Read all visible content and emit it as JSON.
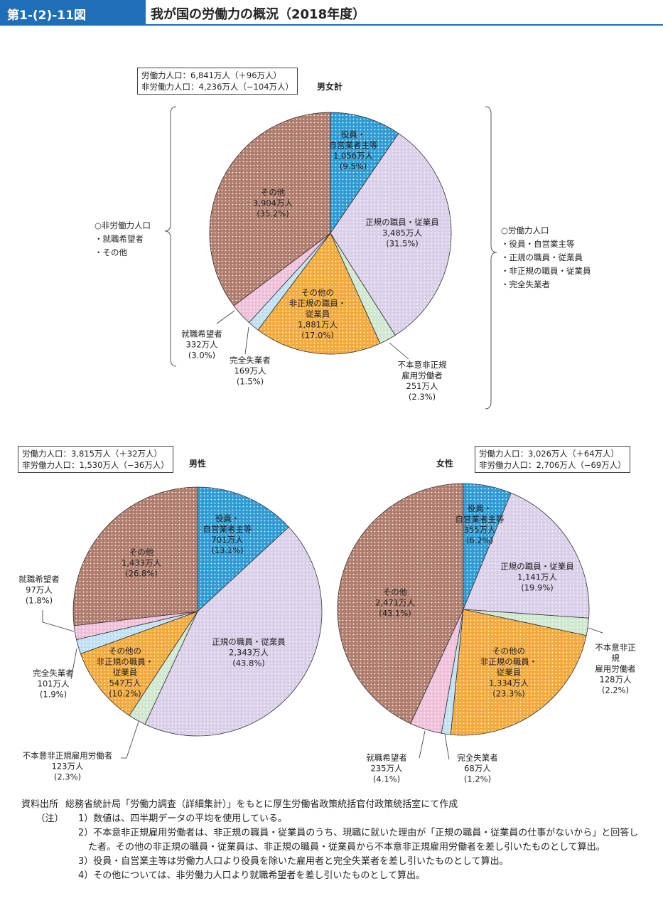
{
  "header": {
    "figure_number": "第1-(2)-11図",
    "title": "我が国の労働力の概況（2018年度）"
  },
  "chart_data": [
    {
      "type": "pie",
      "title": "男女計",
      "summary": [
        "労働力人口：6,841万人（＋96万人）",
        "非労働力人口：4,236万人（−104万人）"
      ],
      "categories": [
        "役員・\n自営業者主等",
        "正規の職員・従業員",
        "不本意非正規\n雇用労働者",
        "その他の\n非正規の職員・\n従業員",
        "完全失業者",
        "就職希望者",
        "その他"
      ],
      "values": [
        1056,
        3485,
        251,
        1881,
        169,
        332,
        3904
      ],
      "value_labels": [
        "1,056万人",
        "3,485万人",
        "251万人",
        "1,881万人",
        "169万人",
        "332万人",
        "3,904万人"
      ],
      "percents": [
        9.5,
        31.5,
        2.3,
        17.0,
        1.5,
        3.0,
        35.2
      ],
      "percent_labels": [
        "(9.5%)",
        "(31.5%)",
        "(2.3%)",
        "(17.0%)",
        "(1.5%)",
        "(3.0%)",
        "(35.2%)"
      ],
      "colors": [
        "#2f9bd4",
        "#d9cfe9",
        "#cfe7cf",
        "#f4a93b",
        "#bfe0f2",
        "#efbfd9",
        "#b07d6d"
      ]
    },
    {
      "type": "pie",
      "title": "男性",
      "summary": [
        "労働力人口：3,815万人（＋32万人）",
        "非労働力人口：1,530万人（−36万人）"
      ],
      "categories": [
        "役員・\n自営業者主等",
        "正規の職員・従業員",
        "不本意非正規雇用労働者",
        "その他の\n非正規の職員・\n従業員",
        "完全失業者",
        "就職希望者",
        "その他"
      ],
      "values": [
        701,
        2343,
        123,
        547,
        101,
        97,
        1433
      ],
      "value_labels": [
        "701万人",
        "2,343万人",
        "123万人",
        "547万人",
        "101万人",
        "97万人",
        "1,433万人"
      ],
      "percents": [
        13.1,
        43.8,
        2.3,
        10.2,
        1.9,
        1.8,
        26.8
      ],
      "percent_labels": [
        "(13.1%)",
        "(43.8%)",
        "(2.3%)",
        "(10.2%)",
        "(1.9%)",
        "(1.8%)",
        "(26.8%)"
      ],
      "colors": [
        "#2f9bd4",
        "#d9cfe9",
        "#cfe7cf",
        "#f4a93b",
        "#bfe0f2",
        "#efbfd9",
        "#b07d6d"
      ]
    },
    {
      "type": "pie",
      "title": "女性",
      "summary": [
        "労働力人口：3,026万人（＋64万人）",
        "非労働力人口：2,706万人（−69万人）"
      ],
      "categories": [
        "役員・\n自営業者主等",
        "正規の職員・従業員",
        "不本意非正規\n雇用労働者",
        "その他の\n非正規の職員・\n従業員",
        "完全失業者",
        "就職希望者",
        "その他"
      ],
      "values": [
        355,
        1141,
        128,
        1334,
        68,
        235,
        2471
      ],
      "value_labels": [
        "355万人",
        "1,141万人",
        "128万人",
        "1,334万人",
        "68万人",
        "235万人",
        "2,471万人"
      ],
      "percents": [
        6.2,
        19.9,
        2.2,
        23.3,
        1.2,
        4.1,
        43.1
      ],
      "percent_labels": [
        "(6.2%)",
        "(19.9%)",
        "(2.2%)",
        "(23.3%)",
        "(1.2%)",
        "(4.1%)",
        "(43.1%)"
      ],
      "colors": [
        "#2f9bd4",
        "#d9cfe9",
        "#cfe7cf",
        "#f4a93b",
        "#bfe0f2",
        "#efbfd9",
        "#b07d6d"
      ]
    }
  ],
  "brackets": {
    "left": "○非労働力人口\n・就職希望者\n・その他",
    "right": "○労働力人口\n・役員・自営業主等\n・正規の職員・従業員\n・非正規の職員・従業員\n・完全失業者"
  },
  "notes": {
    "source_label": "資料出所",
    "source": "総務省統計局「労働力調査（詳細集計）」をもとに厚生労働省政策統括官付政策統括室にて作成",
    "note_label": "（注）",
    "items": [
      "1）数値は、四半期データの平均を使用している。",
      "2）不本意非正規雇用労働者は、非正規の職員・従業員のうち、現職に就いた理由が「正規の職員・従業員の仕事がないから」と回答した者。その他の非正規の職員・従業員は、非正規の職員・従業員から不本意非正規雇用労働者を差し引いたものとして算出。",
      "3）役員・自営業主等は労働力人口より役員を除いた雇用者と完全失業者を差し引いたものとして算出。",
      "4）その他については、非労働力人口より就職希望者を差し引いたものとして算出。"
    ]
  }
}
